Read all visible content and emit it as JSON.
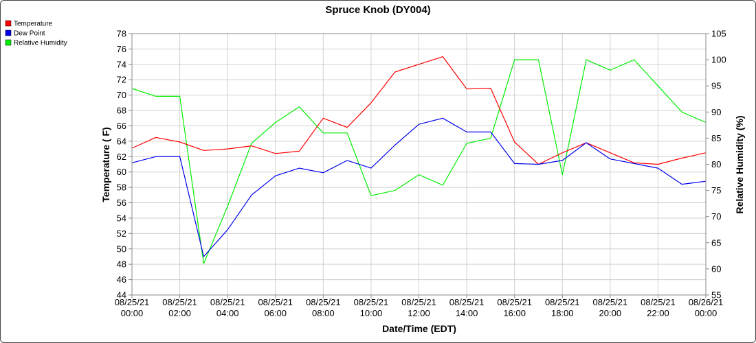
{
  "chart_data": {
    "type": "line",
    "title": "Spruce Knob (DY004)",
    "xlabel": "Date/Time (EDT)",
    "ylabel_left": "Temperature ( F)",
    "ylabel_right": "Relative Humidity (%)",
    "x_ticks": [
      [
        "08/25/21",
        "00:00"
      ],
      [
        "08/25/21",
        "02:00"
      ],
      [
        "08/25/21",
        "04:00"
      ],
      [
        "08/25/21",
        "06:00"
      ],
      [
        "08/25/21",
        "08:00"
      ],
      [
        "08/25/21",
        "10:00"
      ],
      [
        "08/25/21",
        "12:00"
      ],
      [
        "08/25/21",
        "14:00"
      ],
      [
        "08/25/21",
        "16:00"
      ],
      [
        "08/25/21",
        "18:00"
      ],
      [
        "08/25/21",
        "20:00"
      ],
      [
        "08/25/21",
        "22:00"
      ],
      [
        "08/26/21",
        "00:00"
      ]
    ],
    "xlim": [
      "08/25/21 00:00",
      "08/26/21 00:00"
    ],
    "ylim_left": [
      44,
      78
    ],
    "yticks_left": [
      44,
      46,
      48,
      50,
      52,
      54,
      56,
      58,
      60,
      62,
      64,
      66,
      68,
      70,
      72,
      74,
      76,
      78
    ],
    "ylim_right": [
      55,
      105
    ],
    "yticks_right": [
      55,
      60,
      65,
      70,
      75,
      80,
      85,
      90,
      95,
      100,
      105
    ],
    "grid": true,
    "legend_position": "top-left",
    "series": [
      {
        "name": "Temperature",
        "axis": "left",
        "color": "#ff0000",
        "x": [
          "08/25/21 00:00",
          "08/25/21 01:00",
          "08/25/21 02:00",
          "08/25/21 03:00",
          "08/25/21 04:00",
          "08/25/21 05:00",
          "08/25/21 06:00",
          "08/25/21 07:00",
          "08/25/21 08:00",
          "08/25/21 09:00",
          "08/25/21 10:00",
          "08/25/21 11:00",
          "08/25/21 12:00",
          "08/25/21 13:00",
          "08/25/21 14:00",
          "08/25/21 15:00",
          "08/25/21 16:00",
          "08/25/21 17:00",
          "08/25/21 18:00",
          "08/25/21 19:00",
          "08/25/21 20:00",
          "08/25/21 21:00",
          "08/25/21 22:00",
          "08/25/21 23:00",
          "08/26/21 00:00"
        ],
        "y": [
          63.1,
          64.5,
          63.9,
          62.8,
          63.0,
          63.4,
          62.4,
          62.7,
          67.0,
          65.8,
          69.0,
          73.0,
          74.0,
          75.0,
          70.8,
          70.9,
          63.9,
          61.0,
          62.5,
          63.8,
          62.5,
          61.2,
          61.0,
          61.8,
          62.5
        ]
      },
      {
        "name": "Dew Point",
        "axis": "left",
        "color": "#0000ee",
        "x": [
          "08/25/21 00:00",
          "08/25/21 01:00",
          "08/25/21 02:00",
          "08/25/21 03:00",
          "08/25/21 04:00",
          "08/25/21 05:00",
          "08/25/21 06:00",
          "08/25/21 07:00",
          "08/25/21 08:00",
          "08/25/21 09:00",
          "08/25/21 10:00",
          "08/25/21 11:00",
          "08/25/21 12:00",
          "08/25/21 13:00",
          "08/25/21 14:00",
          "08/25/21 15:00",
          "08/25/21 16:00",
          "08/25/21 17:00",
          "08/25/21 18:00",
          "08/25/21 19:00",
          "08/25/21 20:00",
          "08/25/21 21:00",
          "08/25/21 22:00",
          "08/25/21 23:00",
          "08/26/21 00:00"
        ],
        "y": [
          61.2,
          62.0,
          62.0,
          49.0,
          52.5,
          57.0,
          59.5,
          60.5,
          59.9,
          61.5,
          60.5,
          63.5,
          66.2,
          67.0,
          65.2,
          65.2,
          61.1,
          61.0,
          61.5,
          63.8,
          61.7,
          61.1,
          60.5,
          58.4,
          58.8
        ]
      },
      {
        "name": "Relative Humidity",
        "axis": "right",
        "color": "#00ee00",
        "x": [
          "08/25/21 00:00",
          "08/25/21 01:00",
          "08/25/21 02:00",
          "08/25/21 03:00",
          "08/25/21 04:00",
          "08/25/21 05:00",
          "08/25/21 06:00",
          "08/25/21 07:00",
          "08/25/21 08:00",
          "08/25/21 09:00",
          "08/25/21 10:00",
          "08/25/21 11:00",
          "08/25/21 12:00",
          "08/25/21 13:00",
          "08/25/21 14:00",
          "08/25/21 15:00",
          "08/25/21 16:00",
          "08/25/21 17:00",
          "08/25/21 18:00",
          "08/25/21 19:00",
          "08/25/21 20:00",
          "08/25/21 21:00",
          "08/25/21 22:00",
          "08/25/21 23:00",
          "08/26/21 00:00"
        ],
        "y": [
          94.5,
          93.0,
          93.0,
          61.0,
          72.0,
          84.0,
          88.0,
          91.0,
          86.0,
          86.0,
          74.0,
          75.0,
          78.0,
          76.0,
          84.0,
          85.0,
          100.0,
          100.0,
          78.0,
          100.0,
          98.0,
          100.0,
          95.0,
          90.0,
          88.0
        ]
      }
    ]
  }
}
